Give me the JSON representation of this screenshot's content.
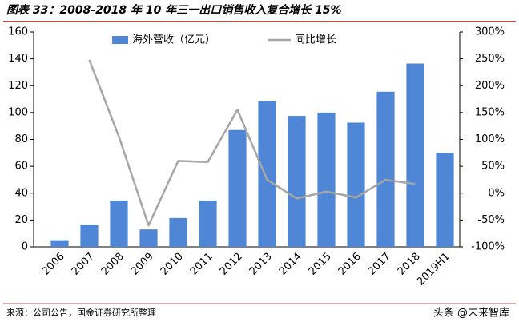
{
  "chart_data": {
    "type": "bar",
    "title": "图表 33：2008-2018 年 10 年三一出口销售收入复合增长 15%",
    "categories": [
      "2006",
      "2007",
      "2008",
      "2009",
      "2010",
      "2011",
      "2012",
      "2013",
      "2014",
      "2015",
      "2016",
      "2017",
      "2018",
      "2019H1"
    ],
    "series": [
      {
        "name": "海外营收（亿元）",
        "type": "bar",
        "color": "#4f86d6",
        "values": [
          5,
          16.5,
          34.5,
          13,
          21.5,
          34.5,
          87,
          108.5,
          97.5,
          100,
          92.5,
          115.5,
          136.5,
          70
        ]
      },
      {
        "name": "同比增长",
        "type": "line",
        "axis": "y2",
        "color": "#a6a6a6",
        "values": [
          null,
          248,
          105,
          -60,
          60,
          58,
          155,
          25,
          -10,
          3,
          -8,
          25,
          17,
          null
        ]
      }
    ],
    "ylim": [
      0,
      160
    ],
    "yticks": [
      0,
      20,
      40,
      60,
      80,
      100,
      120,
      140,
      160
    ],
    "y2lim": [
      -100,
      300
    ],
    "y2ticks": [
      {
        "value": -100,
        "label": "-100%"
      },
      {
        "value": -50,
        "label": "-50%"
      },
      {
        "value": 0,
        "label": "0%"
      },
      {
        "value": 50,
        "label": "50%"
      },
      {
        "value": 100,
        "label": "100%"
      },
      {
        "value": 150,
        "label": "150%"
      },
      {
        "value": 200,
        "label": "200%"
      },
      {
        "value": 250,
        "label": "250%"
      },
      {
        "value": 300,
        "label": "300%"
      }
    ],
    "grid": false,
    "legend": "top"
  },
  "source": "来源：公司公告，国金证券研究所整理",
  "watermark": "头条 @未来智库"
}
